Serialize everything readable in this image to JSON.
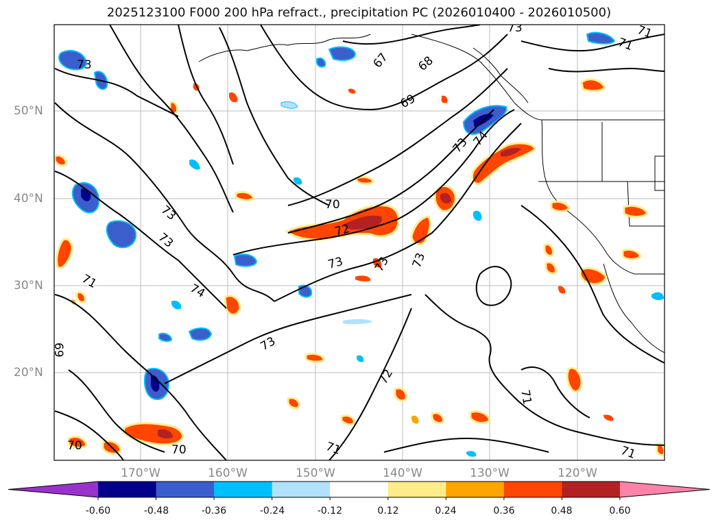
{
  "title": "2025123100 F000 200 hPa refract., precipitation PC (2026010400 - 2026010500)",
  "lat_labels": [
    "50°N",
    "40°N",
    "30°N",
    "20°N"
  ],
  "lon_labels": [
    "170°W",
    "160°W",
    "150°W",
    "140°W",
    "130°W",
    "120°W"
  ],
  "colorbar": {
    "ticks": [
      "-0.60",
      "-0.48",
      "-0.36",
      "-0.24",
      "-0.12",
      "0.12",
      "0.24",
      "0.36",
      "0.48",
      "0.60"
    ],
    "colors": [
      "#9932cc",
      "#00008b",
      "#3a5fcd",
      "#00bfff",
      "#b0e2ff",
      "#ffffff",
      "#ffec8b",
      "#ffa500",
      "#ff4500",
      "#b22222",
      "#ff82ab"
    ]
  },
  "contour_labels": [
    "73",
    "73",
    "73",
    "71",
    "74",
    "73",
    "73",
    "69",
    "70",
    "70",
    "71",
    "72",
    "73",
    "73",
    "73",
    "67",
    "68",
    "69",
    "70",
    "71",
    "73",
    "74",
    "72",
    "71",
    "71",
    "71"
  ],
  "precip_colors": {
    "pos_light": "#ffec8b",
    "pos_mid": "#ffa500",
    "pos_strong": "#ff4500",
    "pos_max": "#b22222",
    "neg_light": "#b0e2ff",
    "neg_mid": "#00bfff",
    "neg_strong": "#3a5fcd",
    "neg_max": "#00008b"
  }
}
